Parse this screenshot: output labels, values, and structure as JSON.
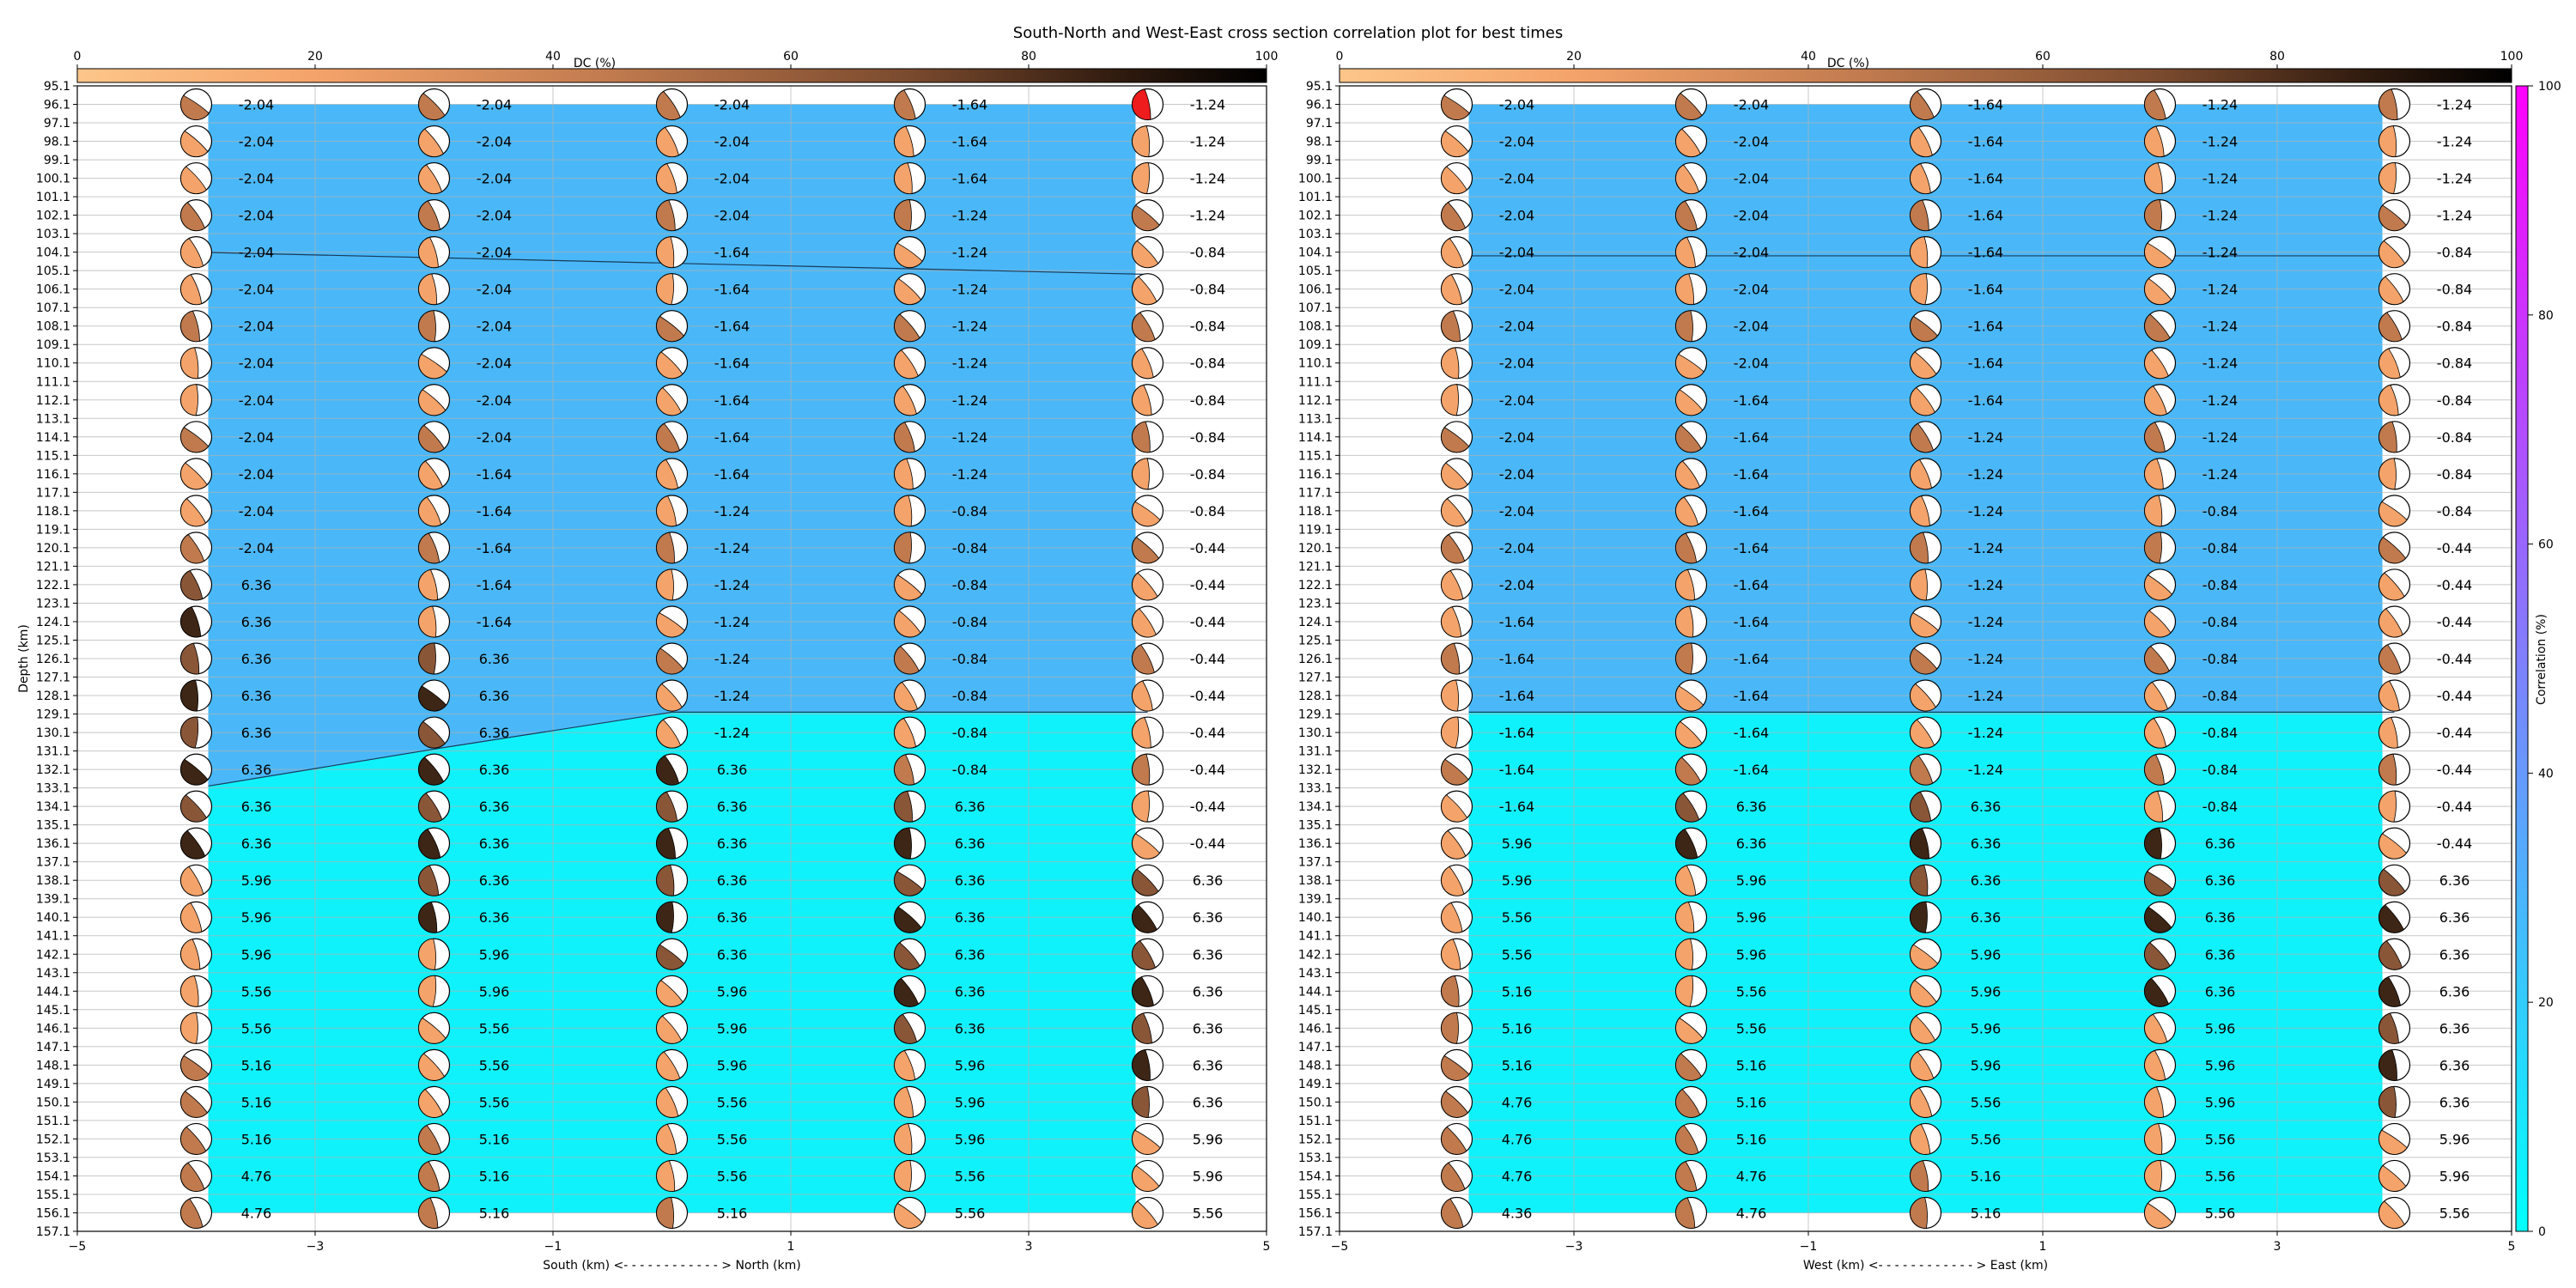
{
  "title": "South-North and West-East cross section correlation plot for best times",
  "chart_data": [
    {
      "type": "heatmap",
      "xlabel": "South (km) <- - - - - - - - - - - - > North (km)",
      "ylabel": "Depth (km)",
      "xlim": [
        -5,
        5
      ],
      "x_ticks": [
        "−5",
        "−3",
        "−1",
        "1",
        "3",
        "5"
      ],
      "x": [
        -4,
        -2,
        0,
        2,
        4
      ],
      "depths": [
        96.1,
        98.1,
        100.1,
        102.1,
        104.1,
        106.1,
        108.1,
        110.1,
        112.1,
        114.1,
        116.1,
        118.1,
        120.1,
        122.1,
        124.1,
        126.1,
        128.1,
        130.1,
        132.1,
        134.1,
        136.1,
        138.1,
        140.1,
        142.1,
        144.1,
        146.1,
        148.1,
        150.1,
        152.1,
        154.1,
        156.1
      ],
      "time_shifts": [
        [
          "-2.04",
          "-2.04",
          "-2.04",
          "-2.04",
          "-2.04",
          "-2.04",
          "-2.04",
          "-2.04",
          "-2.04",
          "-2.04",
          "-2.04",
          "-2.04",
          "-2.04",
          "6.36",
          "6.36",
          "6.36",
          "6.36",
          "6.36",
          "6.36",
          "6.36",
          "6.36",
          "5.96",
          "5.96",
          "5.96",
          "5.56",
          "5.56",
          "5.16",
          "5.16",
          "5.16",
          "4.76",
          "4.76"
        ],
        [
          "-2.04",
          "-2.04",
          "-2.04",
          "-2.04",
          "-2.04",
          "-2.04",
          "-2.04",
          "-2.04",
          "-2.04",
          "-2.04",
          "-1.64",
          "-1.64",
          "-1.64",
          "-1.64",
          "-1.64",
          "6.36",
          "6.36",
          "6.36",
          "6.36",
          "6.36",
          "6.36",
          "6.36",
          "6.36",
          "5.96",
          "5.96",
          "5.56",
          "5.56",
          "5.56",
          "5.16",
          "5.16",
          "5.16"
        ],
        [
          "-2.04",
          "-2.04",
          "-2.04",
          "-2.04",
          "-1.64",
          "-1.64",
          "-1.64",
          "-1.64",
          "-1.64",
          "-1.64",
          "-1.64",
          "-1.24",
          "-1.24",
          "-1.24",
          "-1.24",
          "-1.24",
          "-1.24",
          "-1.24",
          "6.36",
          "6.36",
          "6.36",
          "6.36",
          "6.36",
          "6.36",
          "5.96",
          "5.96",
          "5.96",
          "5.56",
          "5.56",
          "5.56",
          "5.16"
        ],
        [
          "-1.64",
          "-1.64",
          "-1.64",
          "-1.24",
          "-1.24",
          "-1.24",
          "-1.24",
          "-1.24",
          "-1.24",
          "-1.24",
          "-1.24",
          "-0.84",
          "-0.84",
          "-0.84",
          "-0.84",
          "-0.84",
          "-0.84",
          "-0.84",
          "-0.84",
          "6.36",
          "6.36",
          "6.36",
          "6.36",
          "6.36",
          "6.36",
          "6.36",
          "5.96",
          "5.96",
          "5.96",
          "5.56",
          "5.56"
        ],
        [
          "-1.24",
          "-1.24",
          "-1.24",
          "-1.24",
          "-0.84",
          "-0.84",
          "-0.84",
          "-0.84",
          "-0.84",
          "-0.84",
          "-0.84",
          "-0.84",
          "-0.44",
          "-0.44",
          "-0.44",
          "-0.44",
          "-0.44",
          "-0.44",
          "-0.44",
          "-0.44",
          "-0.44",
          "6.36",
          "6.36",
          "6.36",
          "6.36",
          "6.36",
          "6.36",
          "6.36",
          "5.96",
          "5.96",
          "5.56"
        ]
      ],
      "boundary_depth": [
        104.1,
        104.4,
        104.7,
        105.0,
        105.3
      ],
      "boundary_depth_lower": [
        133.0,
        131.0,
        129.0,
        129.0,
        129.0
      ]
    },
    {
      "type": "heatmap",
      "xlabel": "West (km) <- - - - - - - - - - - - > East (km)",
      "ylabel": "Depth (km)",
      "xlim": [
        -5,
        5
      ],
      "x_ticks": [
        "−5",
        "−3",
        "−1",
        "1",
        "3",
        "5"
      ],
      "x": [
        -4,
        -2,
        0,
        2,
        4
      ],
      "depths": [
        96.1,
        98.1,
        100.1,
        102.1,
        104.1,
        106.1,
        108.1,
        110.1,
        112.1,
        114.1,
        116.1,
        118.1,
        120.1,
        122.1,
        124.1,
        126.1,
        128.1,
        130.1,
        132.1,
        134.1,
        136.1,
        138.1,
        140.1,
        142.1,
        144.1,
        146.1,
        148.1,
        150.1,
        152.1,
        154.1,
        156.1
      ],
      "time_shifts": [
        [
          "-2.04",
          "-2.04",
          "-2.04",
          "-2.04",
          "-2.04",
          "-2.04",
          "-2.04",
          "-2.04",
          "-2.04",
          "-2.04",
          "-2.04",
          "-2.04",
          "-2.04",
          "-2.04",
          "-1.64",
          "-1.64",
          "-1.64",
          "-1.64",
          "-1.64",
          "-1.64",
          "5.96",
          "5.96",
          "5.56",
          "5.56",
          "5.16",
          "5.16",
          "5.16",
          "4.76",
          "4.76",
          "4.76",
          "4.36"
        ],
        [
          "-2.04",
          "-2.04",
          "-2.04",
          "-2.04",
          "-2.04",
          "-2.04",
          "-2.04",
          "-2.04",
          "-1.64",
          "-1.64",
          "-1.64",
          "-1.64",
          "-1.64",
          "-1.64",
          "-1.64",
          "-1.64",
          "-1.64",
          "-1.64",
          "-1.64",
          "6.36",
          "6.36",
          "5.96",
          "5.96",
          "5.96",
          "5.56",
          "5.56",
          "5.16",
          "5.16",
          "5.16",
          "4.76",
          "4.76"
        ],
        [
          "-1.64",
          "-1.64",
          "-1.64",
          "-1.64",
          "-1.64",
          "-1.64",
          "-1.64",
          "-1.64",
          "-1.64",
          "-1.24",
          "-1.24",
          "-1.24",
          "-1.24",
          "-1.24",
          "-1.24",
          "-1.24",
          "-1.24",
          "-1.24",
          "-1.24",
          "6.36",
          "6.36",
          "6.36",
          "6.36",
          "5.96",
          "5.96",
          "5.96",
          "5.96",
          "5.56",
          "5.56",
          "5.16",
          "5.16"
        ],
        [
          "-1.24",
          "-1.24",
          "-1.24",
          "-1.24",
          "-1.24",
          "-1.24",
          "-1.24",
          "-1.24",
          "-1.24",
          "-1.24",
          "-1.24",
          "-0.84",
          "-0.84",
          "-0.84",
          "-0.84",
          "-0.84",
          "-0.84",
          "-0.84",
          "-0.84",
          "-0.84",
          "6.36",
          "6.36",
          "6.36",
          "6.36",
          "6.36",
          "5.96",
          "5.96",
          "5.96",
          "5.56",
          "5.56",
          "5.56"
        ],
        [
          "-1.24",
          "-1.24",
          "-1.24",
          "-1.24",
          "-0.84",
          "-0.84",
          "-0.84",
          "-0.84",
          "-0.84",
          "-0.84",
          "-0.84",
          "-0.84",
          "-0.44",
          "-0.44",
          "-0.44",
          "-0.44",
          "-0.44",
          "-0.44",
          "-0.44",
          "-0.44",
          "-0.44",
          "6.36",
          "6.36",
          "6.36",
          "6.36",
          "6.36",
          "6.36",
          "6.36",
          "5.96",
          "5.96",
          "5.56"
        ]
      ],
      "boundary_depth": [
        104.3,
        104.3,
        104.3,
        104.3,
        104.3
      ],
      "boundary_depth_lower": [
        129.0,
        129.0,
        129.0,
        129.0,
        129.0
      ]
    }
  ],
  "depth_ticks": [
    "95.1",
    "96.1",
    "97.1",
    "98.1",
    "99.1",
    "100.1",
    "101.1",
    "102.1",
    "103.1",
    "104.1",
    "105.1",
    "106.1",
    "107.1",
    "108.1",
    "109.1",
    "110.1",
    "111.1",
    "112.1",
    "113.1",
    "114.1",
    "115.1",
    "116.1",
    "117.1",
    "118.1",
    "119.1",
    "120.1",
    "121.1",
    "122.1",
    "123.1",
    "124.1",
    "125.1",
    "126.1",
    "127.1",
    "128.1",
    "129.1",
    "130.1",
    "131.1",
    "132.1",
    "133.1",
    "134.1",
    "135.1",
    "136.1",
    "137.1",
    "138.1",
    "139.1",
    "140.1",
    "141.1",
    "142.1",
    "143.1",
    "144.1",
    "145.1",
    "146.1",
    "147.1",
    "148.1",
    "149.1",
    "150.1",
    "151.1",
    "152.1",
    "153.1",
    "154.1",
    "155.1",
    "156.1",
    "157.1"
  ],
  "dc_colorbar": {
    "label": "DC (%)",
    "ticks": [
      "0",
      "20",
      "40",
      "60",
      "80",
      "100"
    ],
    "colors": [
      "#fdc68a",
      "#f4a36a",
      "#c07a4e",
      "#8a5638",
      "#3e2616",
      "#000000"
    ]
  },
  "corr_colorbar": {
    "label": "Correlation (%)",
    "ticks": [
      "0",
      "20",
      "40",
      "60",
      "80",
      "100"
    ],
    "colors": [
      "#00ffff",
      "#ff00ff"
    ]
  },
  "colors": {
    "upper_zone": "#4ab8f8",
    "lower_zone": "#10f2fb",
    "beachball_red": "#ee1c1c"
  }
}
